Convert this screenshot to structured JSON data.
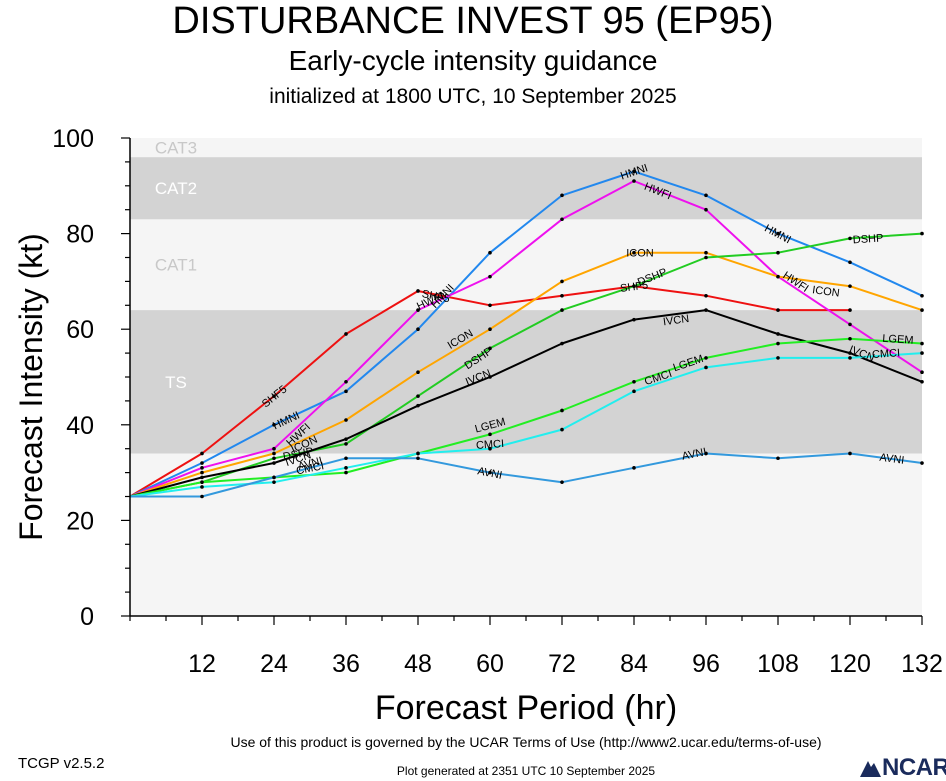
{
  "header": {
    "title": "DISTURBANCE INVEST 95 (EP95)",
    "subtitle": "Early-cycle intensity guidance",
    "init": "initialized at 1800 UTC, 10 September 2025"
  },
  "footer": {
    "terms": "Use of this product is governed by the UCAR Terms of Use (http://www2.ucar.edu/terms-of-use)",
    "version": "TCGP v2.5.2",
    "generated": "Plot generated at 2351 UTC   10 September 2025",
    "logo_text": "NCAR"
  },
  "chart_data": {
    "type": "line",
    "title": "DISTURBANCE INVEST 95 (EP95)",
    "xlabel": "Forecast Period (hr)",
    "ylabel": "Forecast Intensity (kt)",
    "xlim": [
      0,
      132
    ],
    "ylim": [
      0,
      100
    ],
    "xticks": [
      12,
      24,
      36,
      48,
      60,
      72,
      84,
      96,
      108,
      120,
      132
    ],
    "yticks": [
      0,
      20,
      40,
      60,
      80,
      100
    ],
    "bands": [
      {
        "label": "TS",
        "from": 34,
        "to": 64,
        "color": "#d3d3d3"
      },
      {
        "label": "CAT1",
        "from": 64,
        "to": 83,
        "color": "#f5f5f5"
      },
      {
        "label": "CAT2",
        "from": 83,
        "to": 96,
        "color": "#d3d3d3"
      },
      {
        "label": "CAT3",
        "from": 96,
        "to": 100,
        "color": "#f5f5f5"
      }
    ],
    "series": [
      {
        "name": "SHF5",
        "color": "#ee1111",
        "x": [
          0,
          12,
          24,
          36,
          48,
          60,
          72,
          84,
          96,
          108,
          120
        ],
        "values": [
          25,
          34,
          46,
          59,
          68,
          65,
          67,
          69,
          67,
          64,
          64
        ]
      },
      {
        "name": "HMNI",
        "color": "#2288ee",
        "x": [
          0,
          12,
          24,
          36,
          48,
          60,
          72,
          84,
          96,
          108,
          120,
          132
        ],
        "values": [
          25,
          32,
          40,
          47,
          60,
          76,
          88,
          93,
          88,
          80,
          74,
          67
        ]
      },
      {
        "name": "HWFI",
        "color": "#ee11ee",
        "x": [
          0,
          12,
          24,
          36,
          48,
          60,
          72,
          84,
          96,
          108,
          120,
          132
        ],
        "values": [
          25,
          31,
          35,
          49,
          64,
          71,
          83,
          91,
          85,
          71,
          61,
          51
        ]
      },
      {
        "name": "ICON",
        "color": "#ffa500",
        "x": [
          0,
          12,
          24,
          36,
          48,
          60,
          72,
          84,
          96,
          108,
          120,
          132
        ],
        "values": [
          25,
          30,
          34,
          41,
          51,
          60,
          70,
          76,
          76,
          71,
          69,
          64
        ]
      },
      {
        "name": "DSHP",
        "color": "#22cc22",
        "x": [
          0,
          12,
          24,
          36,
          48,
          60,
          72,
          84,
          96,
          108,
          120,
          132
        ],
        "values": [
          25,
          28,
          33,
          36,
          46,
          56,
          64,
          69,
          75,
          76,
          79,
          80
        ]
      },
      {
        "name": "IVCN",
        "color": "#000000",
        "x": [
          0,
          12,
          24,
          36,
          48,
          60,
          72,
          84,
          96,
          108,
          120,
          132
        ],
        "values": [
          25,
          29,
          32,
          37,
          44,
          50,
          57,
          62,
          64,
          59,
          55,
          49
        ]
      },
      {
        "name": "LGEM",
        "color": "#22ee22",
        "x": [
          0,
          12,
          24,
          36,
          48,
          60,
          72,
          84,
          96,
          108,
          120,
          132
        ],
        "values": [
          25,
          28,
          29,
          30,
          34,
          38,
          43,
          49,
          54,
          57,
          58,
          57
        ]
      },
      {
        "name": "CMCI",
        "color": "#22eeee",
        "x": [
          0,
          12,
          24,
          36,
          48,
          60,
          72,
          84,
          96,
          108,
          120,
          132
        ],
        "values": [
          25,
          27,
          28,
          31,
          34,
          35,
          39,
          47,
          52,
          54,
          54,
          55
        ]
      },
      {
        "name": "AVNI",
        "color": "#3399dd",
        "x": [
          0,
          12,
          24,
          36,
          48,
          60,
          72,
          84,
          96,
          108,
          120,
          132
        ],
        "values": [
          25,
          25,
          29,
          33,
          33,
          30,
          28,
          31,
          34,
          33,
          34,
          32
        ]
      }
    ],
    "point_labels": [
      {
        "series": "SHF5",
        "x": 24,
        "y": 46
      },
      {
        "series": "SHF5",
        "x": 51,
        "y": 67
      },
      {
        "series": "SHF5",
        "x": 84,
        "y": 69
      },
      {
        "series": "HMNI",
        "x": 26,
        "y": 41
      },
      {
        "series": "HMNI",
        "x": 52,
        "y": 67
      },
      {
        "series": "HMNI",
        "x": 84,
        "y": 93
      },
      {
        "series": "HMNI",
        "x": 108,
        "y": 80
      },
      {
        "series": "HWFI",
        "x": 28,
        "y": 38
      },
      {
        "series": "HWFI",
        "x": 50,
        "y": 66
      },
      {
        "series": "HWFI",
        "x": 88,
        "y": 89
      },
      {
        "series": "HWFI",
        "x": 111,
        "y": 70
      },
      {
        "series": "ICON",
        "x": 29,
        "y": 36
      },
      {
        "series": "ICON",
        "x": 55,
        "y": 58
      },
      {
        "series": "ICON",
        "x": 85,
        "y": 76
      },
      {
        "series": "ICON",
        "x": 116,
        "y": 68
      },
      {
        "series": "DSHP",
        "x": 28,
        "y": 34
      },
      {
        "series": "DSHP",
        "x": 58,
        "y": 54
      },
      {
        "series": "DSHP",
        "x": 87,
        "y": 71
      },
      {
        "series": "DSHP",
        "x": 123,
        "y": 79
      },
      {
        "series": "IVCN",
        "x": 28,
        "y": 33
      },
      {
        "series": "IVCN",
        "x": 58,
        "y": 50
      },
      {
        "series": "IVCN",
        "x": 91,
        "y": 62
      },
      {
        "series": "IVCN",
        "x": 122,
        "y": 55
      },
      {
        "series": "LGEM",
        "x": 60,
        "y": 40
      },
      {
        "series": "LGEM",
        "x": 93,
        "y": 53
      },
      {
        "series": "LGEM",
        "x": 128,
        "y": 58
      },
      {
        "series": "CMCI",
        "x": 30,
        "y": 31
      },
      {
        "series": "CMCI",
        "x": 60,
        "y": 36
      },
      {
        "series": "CMCI",
        "x": 88,
        "y": 50
      },
      {
        "series": "CMCI",
        "x": 126,
        "y": 55
      },
      {
        "series": "AVNI",
        "x": 30,
        "y": 32
      },
      {
        "series": "AVNI",
        "x": 60,
        "y": 30
      },
      {
        "series": "AVNI",
        "x": 94,
        "y": 34
      },
      {
        "series": "AVNI",
        "x": 127,
        "y": 33
      }
    ],
    "grid": false,
    "legend": "none"
  }
}
